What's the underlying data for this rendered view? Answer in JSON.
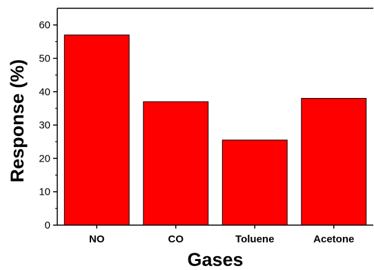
{
  "chart_data": {
    "type": "bar",
    "categories": [
      "NO",
      "CO",
      "Toluene",
      "Acetone"
    ],
    "values": [
      57,
      37,
      25.5,
      38
    ],
    "xlabel": "Gases",
    "ylabel": "Response (%)",
    "ylim": [
      0,
      65
    ],
    "yticks": [
      "0",
      "10",
      "20",
      "30",
      "40",
      "50",
      "60"
    ],
    "bar_color": "#ff0000",
    "bar_edge_color": "#000000",
    "grid": false,
    "legend": "none"
  }
}
